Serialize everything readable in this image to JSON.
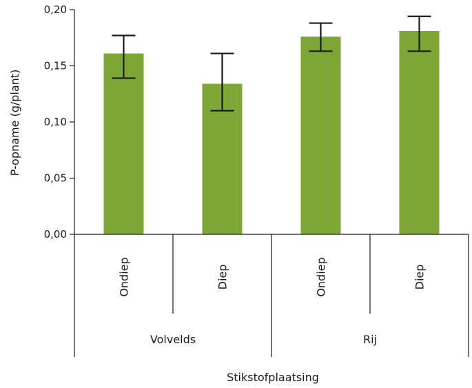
{
  "chart_data": {
    "type": "bar",
    "ylabel": "P-opname (g/plant)",
    "xlabel": "Stikstofplaatsing",
    "ylim": [
      0,
      0.2
    ],
    "yticks": [
      "0,00",
      "0,05",
      "0,10",
      "0,15",
      "0,20"
    ],
    "ytick_values": [
      0,
      0.05,
      0.1,
      0.15,
      0.2
    ],
    "bar_color": "#7ea636",
    "groups": [
      "Volvelds",
      "Rij"
    ],
    "categories": [
      "Ondiep",
      "Diep",
      "Ondiep",
      "Diep"
    ],
    "group_of_category": [
      0,
      0,
      1,
      1
    ],
    "values": [
      0.161,
      0.134,
      0.176,
      0.181
    ],
    "error_low": [
      0.139,
      0.11,
      0.163,
      0.163
    ],
    "error_high": [
      0.177,
      0.161,
      0.188,
      0.194
    ],
    "grid": false
  }
}
